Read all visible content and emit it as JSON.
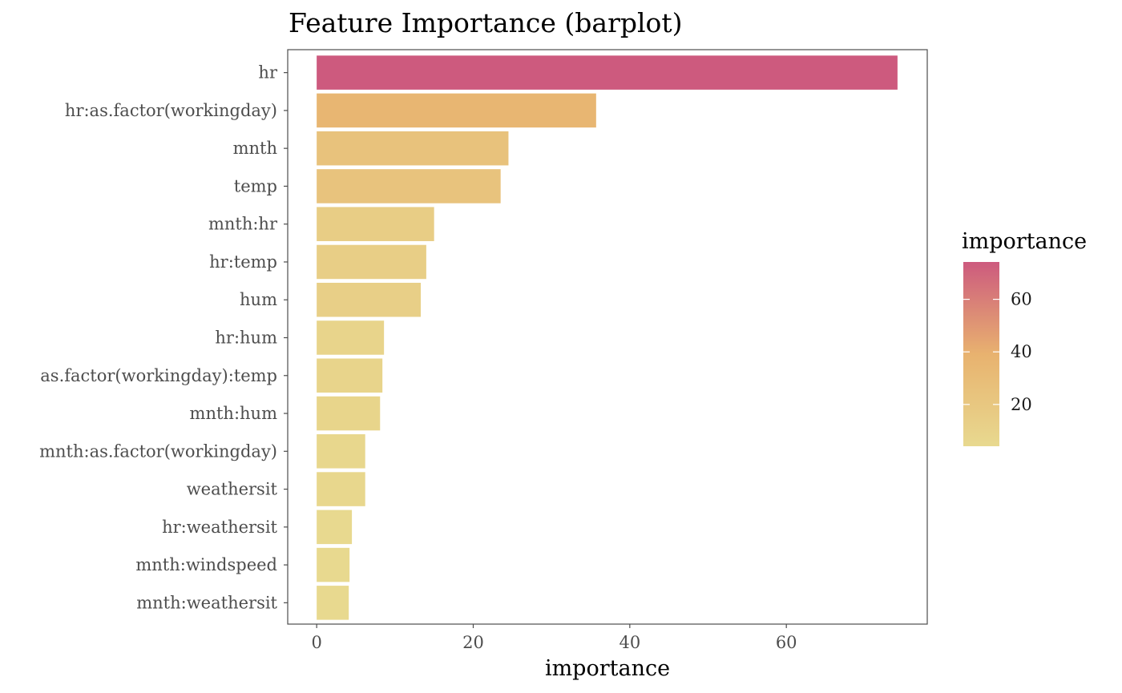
{
  "chart_data": {
    "type": "bar",
    "orientation": "horizontal",
    "title": "Feature Importance (barplot)",
    "xlabel": "importance",
    "ylabel": "",
    "xlim": [
      -3.7,
      78
    ],
    "x_ticks": [
      0,
      20,
      40,
      60
    ],
    "grid": false,
    "categories": [
      "hr",
      "hr:as.factor(workingday)",
      "mnth",
      "temp",
      "mnth:hr",
      "hr:temp",
      "hum",
      "hr:hum",
      "as.factor(workingday):temp",
      "mnth:hum",
      "mnth:as.factor(workingday)",
      "weathersit",
      "hr:weathersit",
      "mnth:windspeed",
      "mnth:weathersit"
    ],
    "values": [
      74.2,
      35.7,
      24.5,
      23.5,
      15.0,
      14.0,
      13.3,
      8.6,
      8.4,
      8.1,
      6.2,
      6.2,
      4.5,
      4.2,
      4.1
    ],
    "legend": {
      "title": "importance",
      "placement": "right",
      "type": "colorbar",
      "range": [
        4.1,
        74.2
      ],
      "ticks": [
        20,
        40,
        60
      ],
      "color_low": "#e8d98f",
      "color_mid": "#e8b26f",
      "color_high": "#cd5a7e"
    }
  }
}
